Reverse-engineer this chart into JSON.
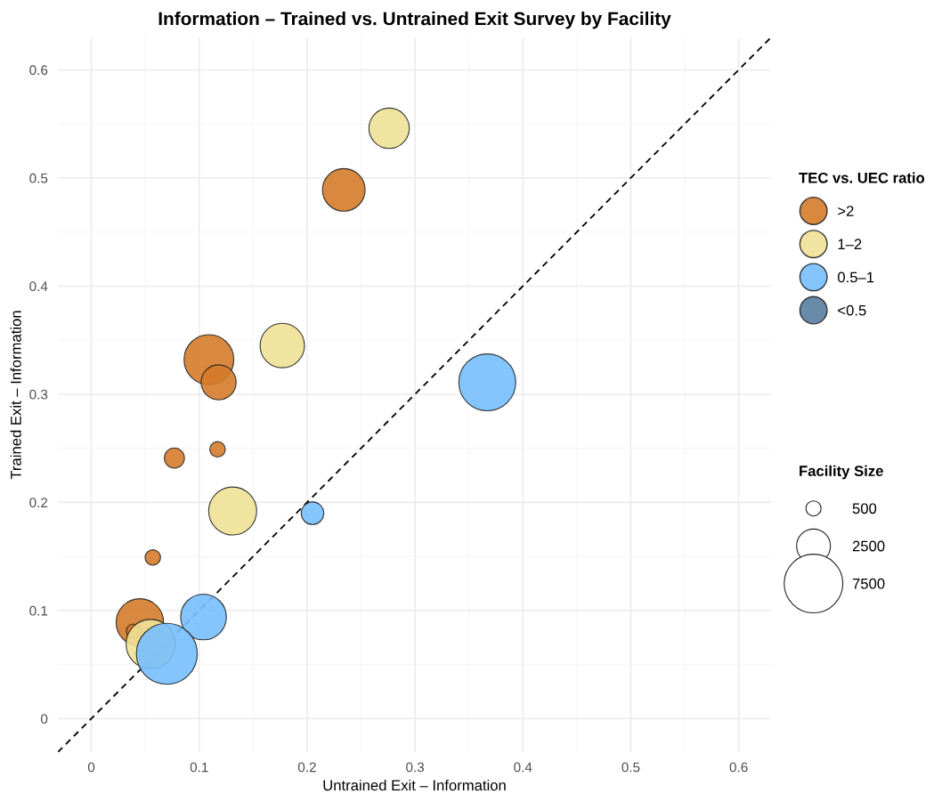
{
  "chart_data": {
    "type": "bubble",
    "title": "Information – Trained vs. Untrained Exit Survey by Facility",
    "xlabel": "Untrained Exit – Information",
    "ylabel": "Trained Exit – Information",
    "legend_title": "TEC vs. UEC ratio",
    "annotations": [
      "Facility Size"
    ],
    "xlim": [
      -0.031,
      0.63
    ],
    "ylim": [
      -0.031,
      0.63
    ],
    "xticks": [
      0,
      0.1,
      0.2,
      0.3,
      0.4,
      0.5,
      0.6
    ],
    "yticks": [
      0,
      0.1,
      0.2,
      0.3,
      0.4,
      0.5,
      0.6
    ],
    "grid": true,
    "legend": "right",
    "size_legend": [
      500,
      2500,
      7500
    ],
    "series": [
      {
        "name": ">2",
        "color": "#d47b2a",
        "x": [
          0.234,
          0.109,
          0.118,
          0.077,
          0.117,
          0.057,
          0.045,
          0.039
        ],
        "values": [
          0.489,
          0.332,
          0.311,
          0.241,
          0.249,
          0.149,
          0.089,
          0.081
        ],
        "sizes": [
          3970,
          5400,
          2670,
          880,
          520,
          520,
          4900,
          440
        ]
      },
      {
        "name": "1–2",
        "color": "#f0e196",
        "x": [
          0.276,
          0.177,
          0.131,
          0.055
        ],
        "values": [
          0.546,
          0.345,
          0.192,
          0.069
        ],
        "sizes": [
          3550,
          4300,
          5020,
          5280
        ]
      },
      {
        "name": "0.5–1",
        "color": "#76bffc",
        "x": [
          0.367,
          0.205,
          0.104,
          0.07
        ],
        "values": [
          0.311,
          0.19,
          0.094,
          0.06
        ],
        "sizes": [
          7060,
          1110,
          4550,
          8100
        ]
      },
      {
        "name": "<0.5",
        "color": "#577ea0"
      },
      {
        "type": "line",
        "color": "#000000",
        "line_style": "dashed",
        "x": [
          -0.031,
          0.63
        ],
        "values": [
          -0.031,
          0.63
        ]
      }
    ]
  }
}
